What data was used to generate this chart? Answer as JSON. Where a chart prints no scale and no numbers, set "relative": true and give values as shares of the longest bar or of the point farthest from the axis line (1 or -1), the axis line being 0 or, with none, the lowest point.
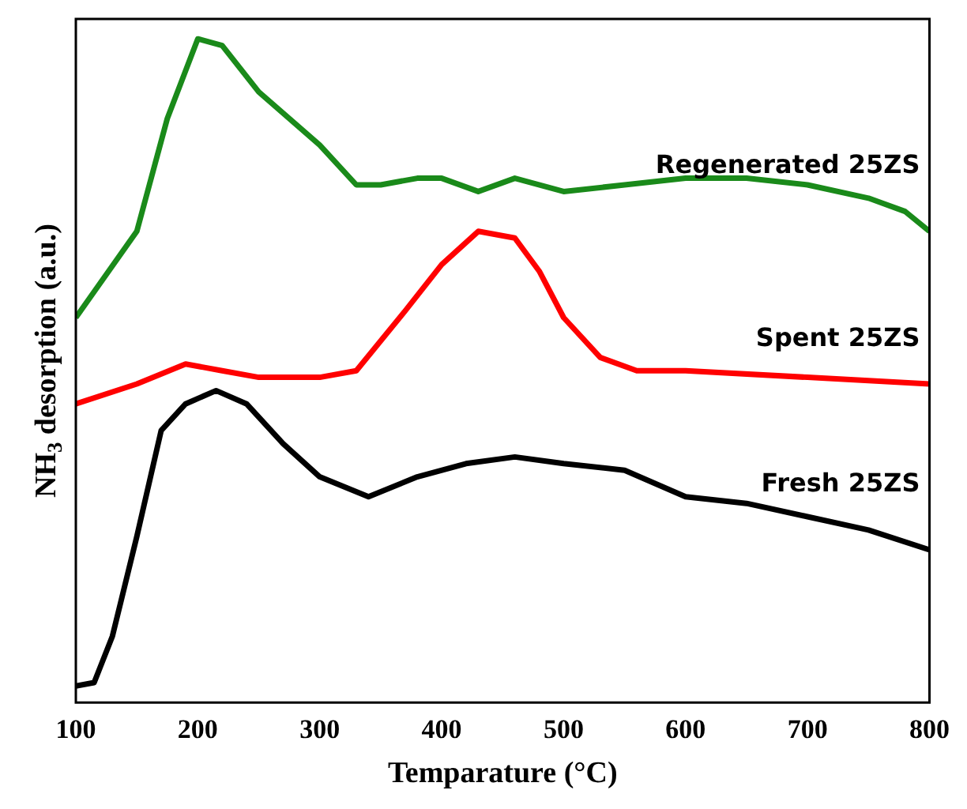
{
  "chart_data": {
    "type": "line",
    "relative": true,
    "xlabel": "Temparature (°C)",
    "ylabel": "NH$_{3}$ desorption (a.u.)",
    "xlim": [
      100,
      800
    ],
    "xticks": [
      100,
      200,
      300,
      400,
      500,
      600,
      700,
      800
    ],
    "grid": false,
    "legend": false,
    "marker": "none",
    "line_style": "solid",
    "series": [
      {
        "name": "Regenerated 25ZS",
        "color": "#1a8a1a",
        "x": [
          100,
          150,
          175,
          200,
          220,
          250,
          300,
          330,
          350,
          380,
          400,
          430,
          460,
          500,
          550,
          600,
          650,
          700,
          750,
          780,
          800
        ],
        "values": [
          0.58,
          0.71,
          0.88,
          1,
          0.99,
          0.92,
          0.84,
          0.78,
          0.78,
          0.79,
          0.79,
          0.77,
          0.79,
          0.77,
          0.78,
          0.79,
          0.79,
          0.78,
          0.76,
          0.74,
          0.71
        ]
      },
      {
        "name": "Spent 25ZS",
        "color": "#ff0000",
        "x": [
          100,
          150,
          190,
          220,
          250,
          300,
          330,
          370,
          400,
          430,
          460,
          480,
          500,
          530,
          560,
          600,
          700,
          800
        ],
        "values": [
          0.45,
          0.48,
          0.51,
          0.5,
          0.49,
          0.49,
          0.5,
          0.59,
          0.66,
          0.71,
          0.7,
          0.65,
          0.58,
          0.52,
          0.5,
          0.5,
          0.49,
          0.48
        ]
      },
      {
        "name": "Fresh 25ZS",
        "color": "#000000",
        "x": [
          100,
          115,
          130,
          150,
          170,
          190,
          215,
          240,
          270,
          300,
          340,
          380,
          420,
          460,
          500,
          550,
          600,
          650,
          700,
          750,
          800
        ],
        "values": [
          0.025,
          0.03,
          0.1,
          0.25,
          0.41,
          0.45,
          0.47,
          0.45,
          0.39,
          0.34,
          0.31,
          0.34,
          0.36,
          0.37,
          0.36,
          0.35,
          0.31,
          0.3,
          0.28,
          0.26,
          0.23
        ]
      }
    ]
  }
}
